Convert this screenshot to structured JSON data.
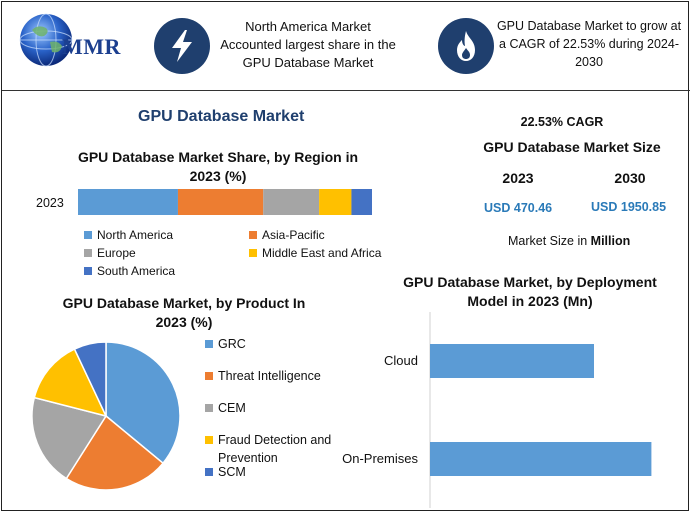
{
  "header": {
    "logo_text": "MMR",
    "box1_text": "North America Market Accounted largest share in the GPU Database Market",
    "box2_text": "GPU Database Market to grow at a CAGR of 22.53% during 2024-2030",
    "icon1": "lightning-bolt-icon",
    "icon2": "flame-icon"
  },
  "main_title": "GPU Database Market",
  "market_size": {
    "cagr": "22.53% CAGR",
    "title": "GPU Database Market Size",
    "year1": "2023",
    "year2": "2030",
    "value1": "USD 470.46",
    "value2": "USD 1950.85",
    "unit_prefix": "Market Size in ",
    "unit_bold": "Million"
  },
  "chart_data": [
    {
      "type": "bar",
      "orientation": "horizontal-stacked-100",
      "title": "GPU Database Market Share, by Region in 2023 (%)",
      "categories": [
        "2023"
      ],
      "series": [
        {
          "name": "North America",
          "values": [
            34
          ],
          "color": "#5b9bd5"
        },
        {
          "name": "Asia-Pacific",
          "values": [
            29
          ],
          "color": "#ed7d31"
        },
        {
          "name": "Europe",
          "values": [
            19
          ],
          "color": "#a5a5a5"
        },
        {
          "name": "Middle East and Africa",
          "values": [
            11
          ],
          "color": "#ffc000"
        },
        {
          "name": "South America",
          "values": [
            7
          ],
          "color": "#4472c4"
        }
      ],
      "legend_position": "bottom"
    },
    {
      "type": "pie",
      "title": "GPU Database Market, by Product In 2023 (%)",
      "slices": [
        {
          "name": "GRC",
          "value": 36,
          "color": "#5b9bd5"
        },
        {
          "name": "Threat Intelligence",
          "value": 23,
          "color": "#ed7d31"
        },
        {
          "name": "CEM",
          "value": 20,
          "color": "#a5a5a5"
        },
        {
          "name": "Fraud Detection and Prevention",
          "value": 14,
          "color": "#ffc000"
        },
        {
          "name": "SCM",
          "value": 7,
          "color": "#4472c4"
        }
      ],
      "legend_position": "right"
    },
    {
      "type": "bar",
      "orientation": "horizontal",
      "title": "GPU Database Market, by Deployment Model in 2023 (Mn)",
      "categories": [
        "Cloud",
        "On-Premises"
      ],
      "values": [
        200,
        270
      ],
      "color": "#5b9bd5",
      "xlim": [
        0,
        300
      ],
      "grid": false
    }
  ]
}
